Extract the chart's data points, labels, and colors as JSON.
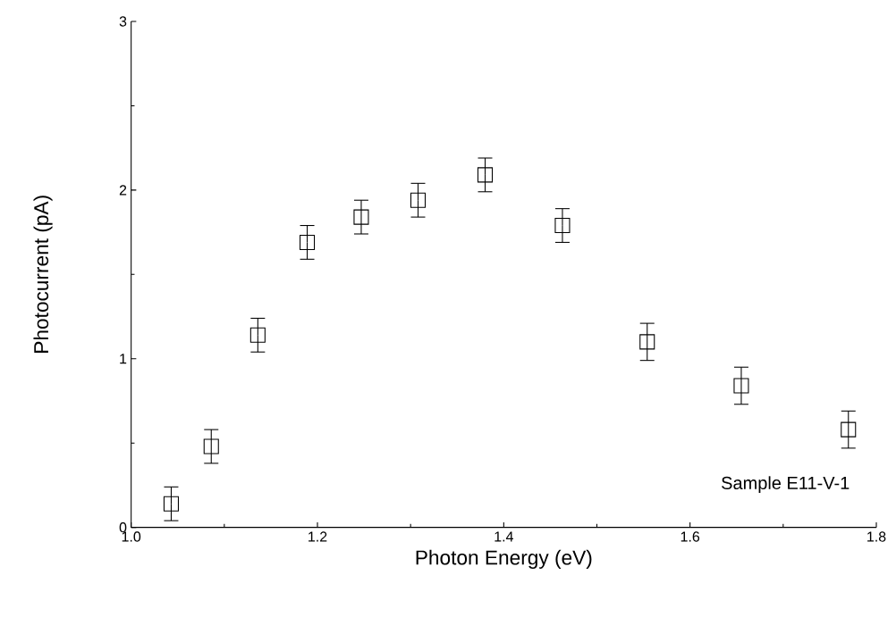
{
  "chart_data": {
    "type": "scatter",
    "xlabel": "Photon Energy   (eV)",
    "ylabel": "Photocurrent     (pA)",
    "x": [
      1.043,
      1.086,
      1.136,
      1.189,
      1.247,
      1.308,
      1.38,
      1.463,
      1.554,
      1.655,
      1.77
    ],
    "values": [
      0.14,
      0.48,
      1.14,
      1.69,
      1.84,
      1.94,
      2.09,
      1.79,
      1.1,
      0.84,
      0.58
    ],
    "errors": [
      0.1,
      0.1,
      0.1,
      0.1,
      0.1,
      0.1,
      0.1,
      0.1,
      0.11,
      0.11,
      0.11
    ],
    "color": "#000000",
    "marker": "square",
    "xlim": [
      1.0,
      1.8
    ],
    "ylim": [
      0,
      3
    ],
    "xticks": [
      {
        "value": 1.0,
        "label": "1.0"
      },
      {
        "value": 1.2,
        "label": "1.2"
      },
      {
        "value": 1.4,
        "label": "1.4"
      },
      {
        "value": 1.6,
        "label": "1.6"
      },
      {
        "value": 1.8,
        "label": "1.8"
      }
    ],
    "yticks": [
      0,
      1,
      2,
      3
    ],
    "annotations": [
      "Sample E11-V-1"
    ],
    "grid": false
  }
}
